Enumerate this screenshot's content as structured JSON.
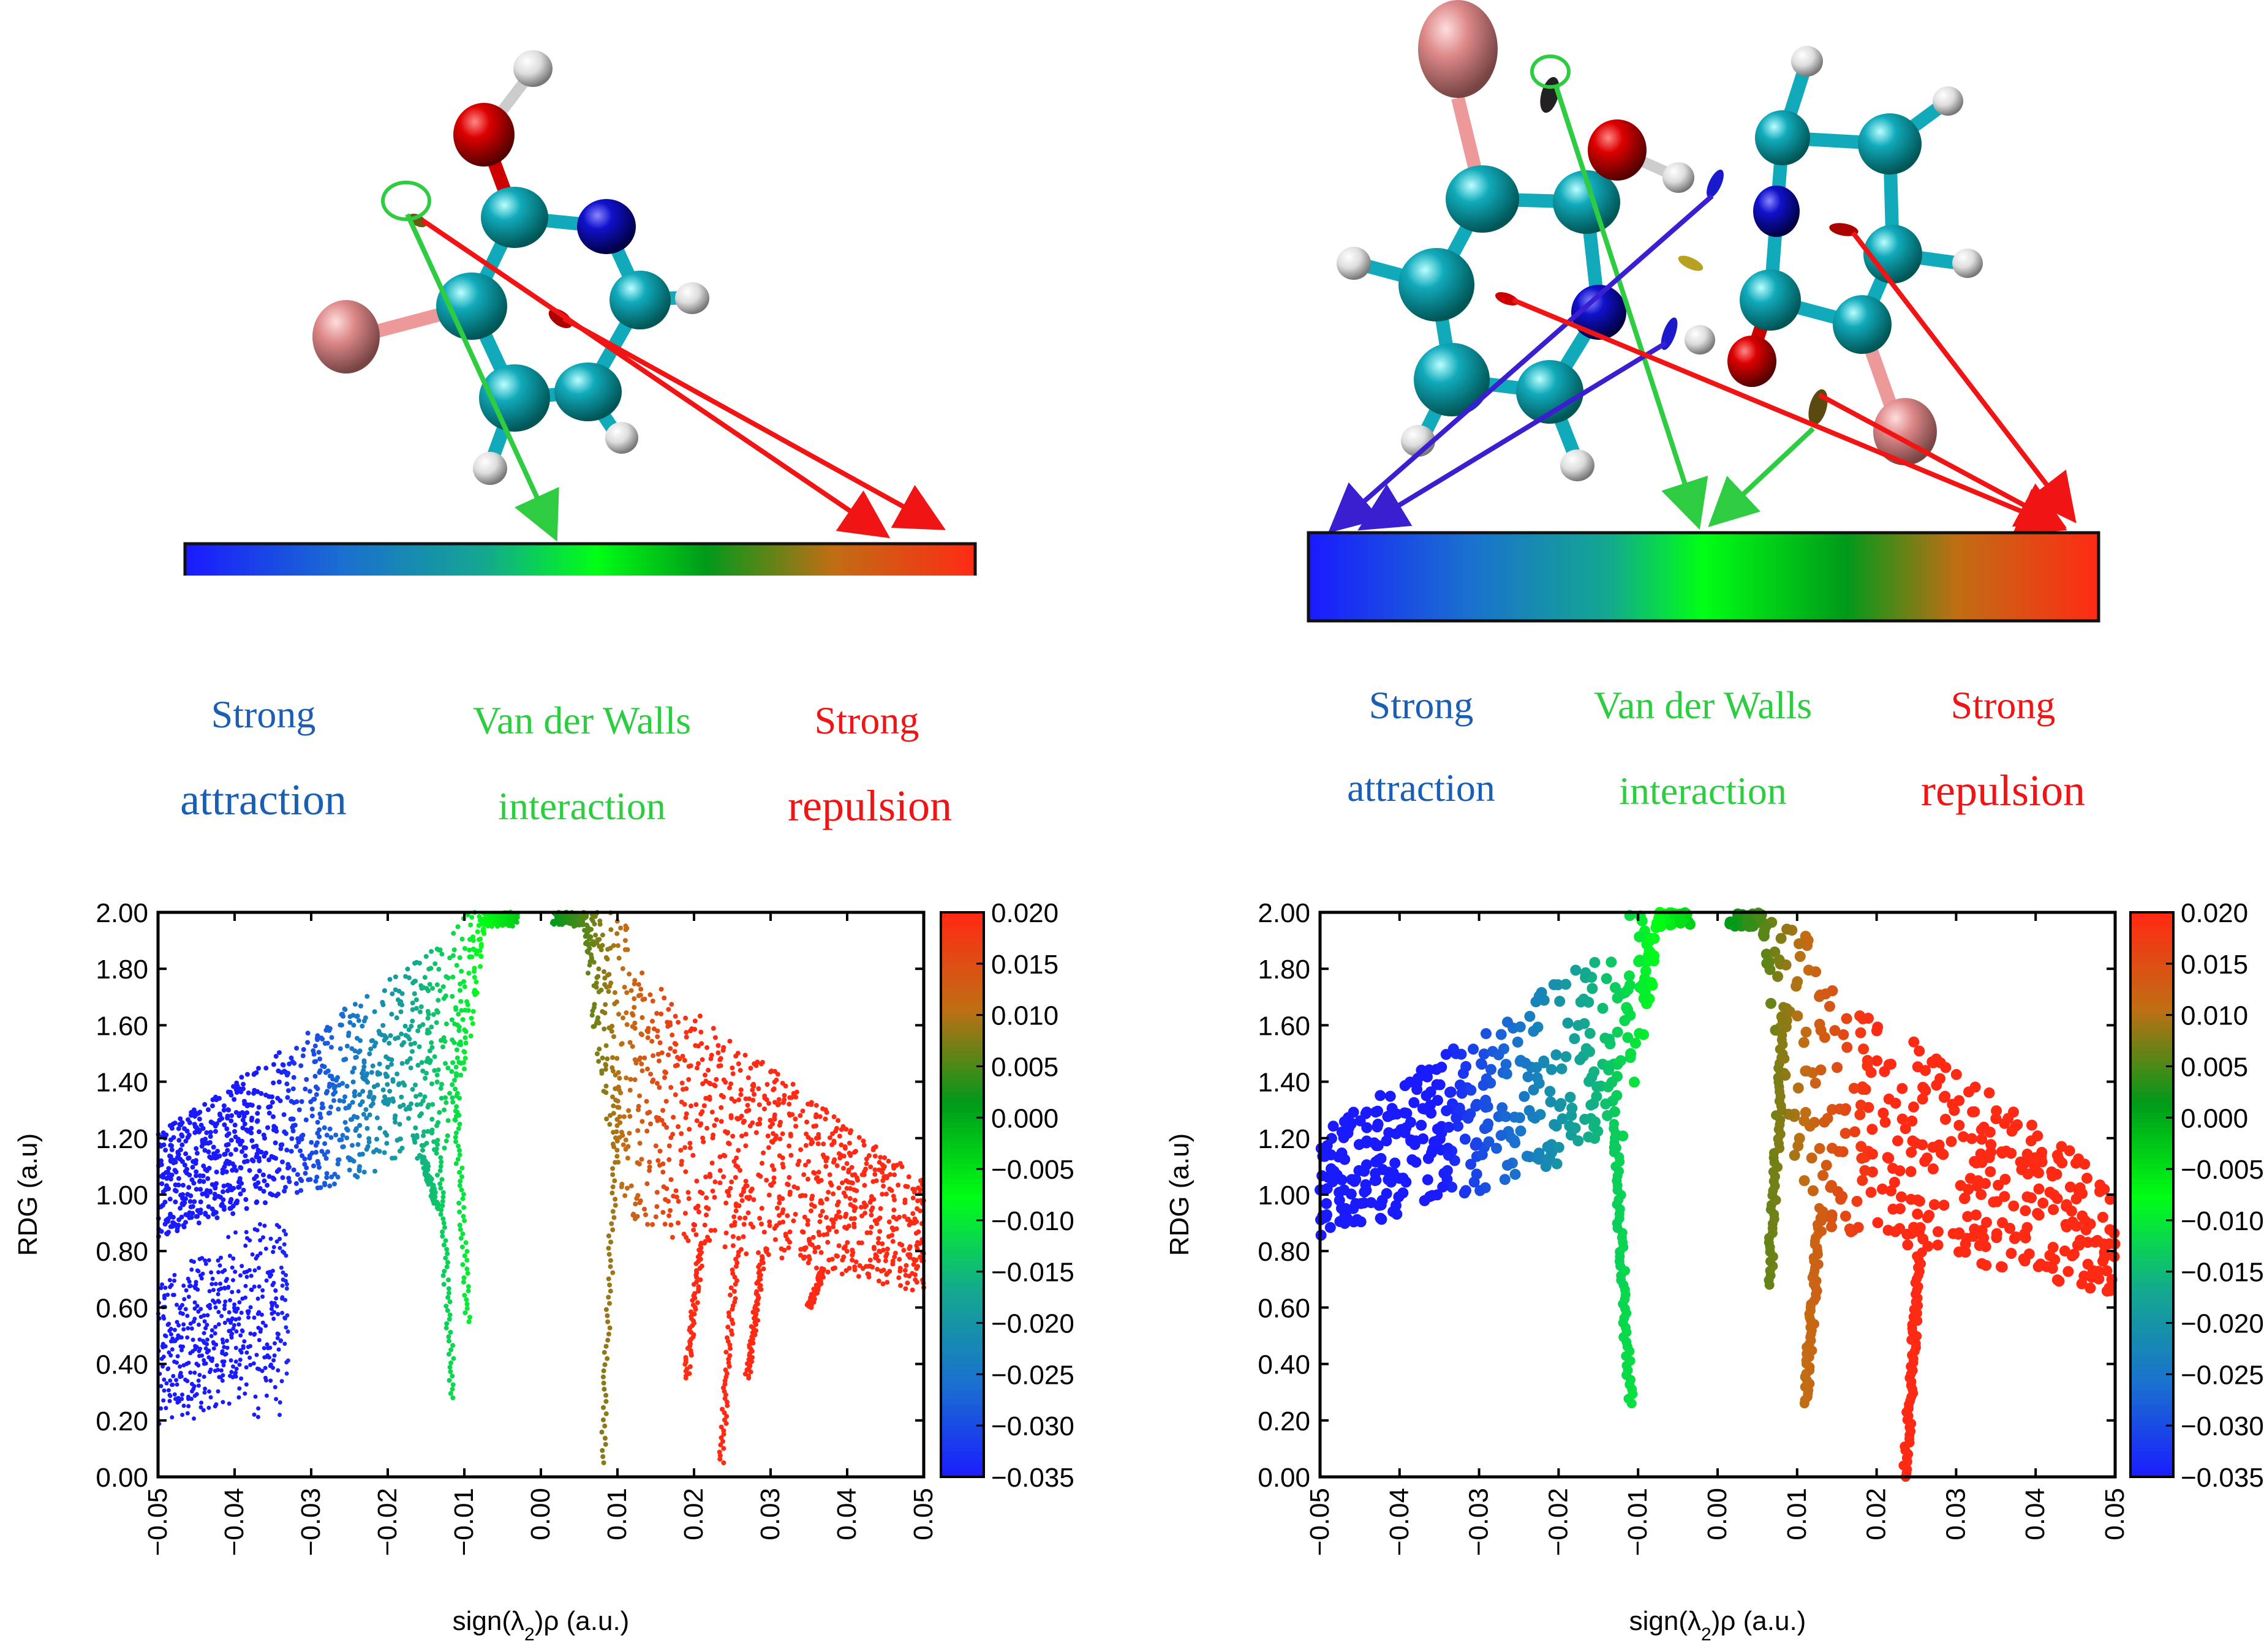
{
  "colors": {
    "blue": "#1a5fb4",
    "green": "#2ecc40",
    "red": "#f01414",
    "arrow_violet": "#3a1fd0"
  },
  "legend_labels": {
    "strong": "Strong",
    "attraction": "attraction",
    "vdw": "Van der Walls",
    "interaction": "interaction",
    "repulsion": "repulsion"
  },
  "colorbar_gradient": [
    "#1a1aff",
    "#1a6fd0",
    "#14a890",
    "#00ff14",
    "#009a1a",
    "#c06e14",
    "#ff2a14"
  ],
  "chart_data": [
    {
      "type": "scatter",
      "panel": "left",
      "xlabel": "sign(λ2)ρ (a.u.)",
      "ylabel": "RDG (a.u)",
      "xlim": [
        -0.05,
        0.05
      ],
      "ylim": [
        0,
        2
      ],
      "xticks": [
        "-0.05",
        "-0.04",
        "-0.03",
        "-0.02",
        "-0.01",
        "0.00",
        "0.01",
        "0.02",
        "0.03",
        "0.04",
        "0.05"
      ],
      "yticks": [
        "0.00",
        "0.20",
        "0.40",
        "0.60",
        "0.80",
        "1.00",
        "1.20",
        "1.40",
        "1.60",
        "1.80",
        "2.00"
      ],
      "colorbar": {
        "min": -0.035,
        "max": 0.02,
        "ticks": [
          "0.020",
          "0.015",
          "0.010",
          "0.005",
          "0.000",
          "-0.005",
          "-0.010",
          "-0.015",
          "-0.020",
          "-0.025",
          "-0.030",
          "-0.035"
        ]
      },
      "spikes": [
        {
          "x": -0.0115,
          "min_rdg": 0.28
        },
        {
          "x": -0.0095,
          "min_rdg": 0.55
        },
        {
          "x": -0.0135,
          "min_rdg": 0.95
        },
        {
          "x": 0.008,
          "min_rdg": 0.05
        },
        {
          "x": 0.019,
          "min_rdg": 0.35
        },
        {
          "x": 0.0235,
          "min_rdg": 0.05
        },
        {
          "x": 0.027,
          "min_rdg": 0.35
        },
        {
          "x": 0.035,
          "min_rdg": 0.6
        }
      ]
    },
    {
      "type": "scatter",
      "panel": "right",
      "xlabel": "sign(λ2)ρ (a.u.)",
      "ylabel": "RDG (a.u)",
      "xlim": [
        -0.05,
        0.05
      ],
      "ylim": [
        0,
        2
      ],
      "xticks": [
        "-0.05",
        "-0.04",
        "-0.03",
        "-0.02",
        "-0.01",
        "0.00",
        "0.01",
        "0.02",
        "0.03",
        "0.04",
        "0.05"
      ],
      "yticks": [
        "0.00",
        "0.20",
        "0.40",
        "0.60",
        "0.80",
        "1.00",
        "1.20",
        "1.40",
        "1.60",
        "1.80",
        "2.00"
      ],
      "colorbar": {
        "min": -0.035,
        "max": 0.02,
        "ticks": [
          "0.020",
          "0.015",
          "0.010",
          "0.005",
          "0.000",
          "-0.005",
          "-0.010",
          "-0.015",
          "-0.020",
          "-0.025",
          "-0.030",
          "-0.035"
        ]
      },
      "spikes": [
        {
          "x": -0.011,
          "min_rdg": 0.26
        },
        {
          "x": 0.0065,
          "min_rdg": 0.68
        },
        {
          "x": 0.011,
          "min_rdg": 0.26
        },
        {
          "x": 0.0235,
          "min_rdg": 0.0
        }
      ]
    }
  ]
}
